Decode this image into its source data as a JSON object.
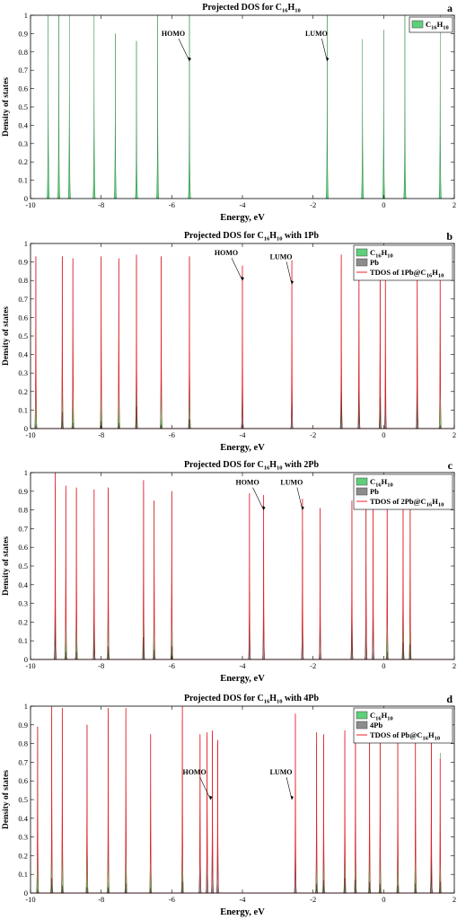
{
  "chart_data": [
    {
      "panel_label": "a",
      "type": "area",
      "title": "Projected DOS for C16H10",
      "title_parts": {
        "prefix": "Projected DOS for C",
        "sub1": "16",
        "mid": "H",
        "sub2": "10",
        "suffix": ""
      },
      "xlabel": "Energy, eV",
      "ylabel": "Density of states",
      "xlim": [
        -10,
        2
      ],
      "ylim": [
        0,
        1
      ],
      "xticks": [
        "-10",
        "-8",
        "-6",
        "-4",
        "-2",
        "0",
        "2"
      ],
      "yticks": [
        "0",
        "0.1",
        "0.2",
        "0.3",
        "0.4",
        "0.5",
        "0.6",
        "0.7",
        "0.8",
        "0.9",
        "1"
      ],
      "legend_position": "top-right",
      "legend": [
        {
          "label_parts": {
            "prefix": "C",
            "sub1": "16",
            "mid": "H",
            "sub2": "10",
            "suffix": ""
          },
          "kind": "patch",
          "color": "#5fcf7a"
        }
      ],
      "annotations": [
        {
          "text": "HOMO",
          "x": -5.5,
          "y": 0.75
        },
        {
          "text": "LUMO",
          "x": -1.6,
          "y": 0.75
        }
      ],
      "series": [
        {
          "kind": "fill",
          "color": "#5fcf7a",
          "peaks": [
            [
              -9.5,
              1.0
            ],
            [
              -9.2,
              1.0
            ],
            [
              -8.9,
              1.0
            ],
            [
              -8.2,
              1.0
            ],
            [
              -7.6,
              0.9
            ],
            [
              -7.0,
              0.86
            ],
            [
              -6.4,
              1.0
            ],
            [
              -5.5,
              1.0
            ],
            [
              -1.6,
              1.0
            ],
            [
              -0.6,
              0.87
            ],
            [
              0,
              0.92
            ],
            [
              0.6,
              1.0
            ],
            [
              1.6,
              1.0
            ]
          ]
        }
      ]
    },
    {
      "panel_label": "b",
      "type": "area",
      "title": "Projected DOS for C16H10 with 1Pb",
      "title_parts": {
        "prefix": "Projected DOS for C",
        "sub1": "16",
        "mid": "H",
        "sub2": "10",
        "suffix": " with 1Pb"
      },
      "xlabel": "Energy, eV",
      "ylabel": "Density of states",
      "xlim": [
        -10,
        2
      ],
      "ylim": [
        0,
        1
      ],
      "xticks": [
        "-10",
        "-8",
        "-6",
        "-4",
        "-2",
        "0",
        "2"
      ],
      "yticks": [
        "0",
        "0.1",
        "0.2",
        "0.3",
        "0.4",
        "0.5",
        "0.6",
        "0.7",
        "0.8",
        "0.9",
        "1"
      ],
      "legend_position": "top-right",
      "legend": [
        {
          "label_parts": {
            "prefix": "C",
            "sub1": "16",
            "mid": "H",
            "sub2": "10",
            "suffix": ""
          },
          "kind": "patch",
          "color": "#5fcf7a"
        },
        {
          "label_parts": {
            "prefix": "Pb",
            "sub1": "",
            "mid": "",
            "sub2": "",
            "suffix": ""
          },
          "kind": "patch",
          "color": "#8c8c8c"
        },
        {
          "label_parts": {
            "prefix": "TDOS of 1Pb@C",
            "sub1": "16",
            "mid": "H",
            "sub2": "10",
            "suffix": ""
          },
          "kind": "line",
          "color": "#e8202a"
        }
      ],
      "annotations": [
        {
          "text": "HOMO",
          "x": -4.0,
          "y": 0.8
        },
        {
          "text": "LUMO",
          "x": -2.6,
          "y": 0.78
        }
      ],
      "series": [
        {
          "kind": "fill",
          "color": "#5fcf7a",
          "peaks": [
            [
              -9.85,
              0.93
            ],
            [
              -9.1,
              0.93
            ],
            [
              -8.8,
              0.9
            ],
            [
              -8.0,
              0.93
            ],
            [
              -7.5,
              0.9
            ],
            [
              -7.0,
              0.92
            ],
            [
              -6.3,
              0.93
            ],
            [
              -5.5,
              0.93
            ],
            [
              -1.2,
              0.87
            ],
            [
              -0.7,
              0.88
            ],
            [
              -0.1,
              0.93
            ],
            [
              0.95,
              0.9
            ],
            [
              1.6,
              0.93
            ]
          ]
        },
        {
          "kind": "fill",
          "color": "#8c8c8c",
          "peaks": [
            [
              -9.85,
              0.02
            ],
            [
              -9.1,
              0.09
            ],
            [
              -8.8,
              0.03
            ],
            [
              -8.0,
              0.04
            ],
            [
              -7.5,
              0.03
            ],
            [
              -7.0,
              0.12
            ],
            [
              -6.3,
              0.02
            ],
            [
              -5.5,
              0.05
            ],
            [
              -4.0,
              0.48
            ],
            [
              -2.6,
              0.32
            ],
            [
              -1.2,
              0.2
            ],
            [
              -0.7,
              0.26
            ],
            [
              -0.1,
              0.17
            ],
            [
              0.05,
              0.4
            ],
            [
              0.95,
              0.23
            ],
            [
              1.6,
              0.02
            ]
          ]
        },
        {
          "kind": "line",
          "color": "#e8202a",
          "peaks": [
            [
              -9.85,
              0.93
            ],
            [
              -9.1,
              0.93
            ],
            [
              -8.8,
              0.92
            ],
            [
              -8.0,
              0.93
            ],
            [
              -7.5,
              0.92
            ],
            [
              -7.0,
              0.94
            ],
            [
              -6.3,
              0.93
            ],
            [
              -5.5,
              0.93
            ],
            [
              -4.0,
              0.88
            ],
            [
              -2.6,
              0.91
            ],
            [
              -1.2,
              0.94
            ],
            [
              -0.7,
              0.94
            ],
            [
              -0.1,
              0.94
            ],
            [
              0.05,
              0.93
            ],
            [
              0.95,
              0.93
            ],
            [
              1.6,
              0.93
            ]
          ]
        }
      ]
    },
    {
      "panel_label": "c",
      "type": "area",
      "title": "Projected DOS for C16H10 with 2Pb",
      "title_parts": {
        "prefix": "Projected DOS for C",
        "sub1": "16",
        "mid": "H",
        "sub2": "10",
        "suffix": " with 2Pb"
      },
      "xlabel": "Energy, eV",
      "ylabel": "Density of states",
      "xlim": [
        -10,
        2
      ],
      "ylim": [
        0,
        1
      ],
      "xticks": [
        "-10",
        "-8",
        "-6",
        "-4",
        "-2",
        "0",
        "2"
      ],
      "yticks": [
        "0",
        "0.1",
        "0.2",
        "0.3",
        "0.4",
        "0.5",
        "0.6",
        "0.7",
        "0.8",
        "0.9",
        "1"
      ],
      "legend_position": "top-right",
      "legend": [
        {
          "label_parts": {
            "prefix": "C",
            "sub1": "16",
            "mid": "H",
            "sub2": "10",
            "suffix": ""
          },
          "kind": "patch",
          "color": "#5fcf7a"
        },
        {
          "label_parts": {
            "prefix": "Pb",
            "sub1": "",
            "mid": "",
            "sub2": "",
            "suffix": ""
          },
          "kind": "patch",
          "color": "#8c8c8c"
        },
        {
          "label_parts": {
            "prefix": "TDOS of 2Pb@C",
            "sub1": "16",
            "mid": "H",
            "sub2": "10",
            "suffix": ""
          },
          "kind": "line",
          "color": "#e8202a"
        }
      ],
      "annotations": [
        {
          "text": "HOMO",
          "x": -3.4,
          "y": 0.8
        },
        {
          "text": "LUMO",
          "x": -2.3,
          "y": 0.8
        }
      ],
      "series": [
        {
          "kind": "fill",
          "color": "#5fcf7a",
          "peaks": [
            [
              -9.3,
              0.93
            ],
            [
              -9.0,
              0.9
            ],
            [
              -8.7,
              0.9
            ],
            [
              -8.2,
              0.7
            ],
            [
              -7.8,
              0.9
            ],
            [
              -6.8,
              0.9
            ],
            [
              -6.5,
              0.85
            ],
            [
              -6.0,
              0.9
            ],
            [
              -0.9,
              0.8
            ],
            [
              -0.5,
              0.8
            ],
            [
              0.1,
              0.9
            ],
            [
              0.55,
              0.8
            ],
            [
              0.75,
              0.8
            ]
          ]
        },
        {
          "kind": "fill",
          "color": "#8c8c8c",
          "peaks": [
            [
              -9.3,
              0.27
            ],
            [
              -9.0,
              0.04
            ],
            [
              -8.7,
              0.04
            ],
            [
              -8.2,
              0.22
            ],
            [
              -7.8,
              0.07
            ],
            [
              -6.8,
              0.12
            ],
            [
              -6.5,
              0.05
            ],
            [
              -6.0,
              0.07
            ],
            [
              -3.8,
              0.36
            ],
            [
              -3.4,
              0.63
            ],
            [
              -2.3,
              0.69
            ],
            [
              -1.8,
              0.6
            ],
            [
              -0.9,
              0.2
            ],
            [
              -0.5,
              0.5
            ],
            [
              -0.3,
              0.63
            ],
            [
              0.1,
              0.04
            ],
            [
              0.55,
              0.09
            ],
            [
              0.75,
              0.08
            ]
          ]
        },
        {
          "kind": "line",
          "color": "#e8202a",
          "peaks": [
            [
              -9.3,
              1.0
            ],
            [
              -9.0,
              0.93
            ],
            [
              -8.7,
              0.92
            ],
            [
              -8.2,
              0.91
            ],
            [
              -7.8,
              0.92
            ],
            [
              -6.8,
              0.96
            ],
            [
              -6.5,
              0.85
            ],
            [
              -6.0,
              0.9
            ],
            [
              -3.8,
              0.89
            ],
            [
              -3.4,
              0.88
            ],
            [
              -2.3,
              0.86
            ],
            [
              -1.8,
              0.81
            ],
            [
              -0.9,
              0.85
            ],
            [
              -0.5,
              0.86
            ],
            [
              -0.3,
              0.92
            ],
            [
              0.1,
              0.92
            ],
            [
              0.55,
              0.9
            ],
            [
              0.75,
              0.87
            ]
          ]
        }
      ]
    },
    {
      "panel_label": "d",
      "type": "area",
      "title": "Projected DOS for C16H10 with 4Pb",
      "title_parts": {
        "prefix": "Projected DOS for C",
        "sub1": "16",
        "mid": "H",
        "sub2": "10",
        "suffix": " with 4Pb"
      },
      "xlabel": "Energy, eV",
      "ylabel": "Density of states",
      "xlim": [
        -10,
        2
      ],
      "ylim": [
        0,
        1
      ],
      "xticks": [
        "-10",
        "-8",
        "-6",
        "-4",
        "-2",
        "0",
        "2"
      ],
      "yticks": [
        "0",
        "0.1",
        "0.2",
        "0.3",
        "0.4",
        "0.5",
        "0.6",
        "0.7",
        "0.8",
        "0.9",
        "1"
      ],
      "legend_position": "top-right",
      "legend": [
        {
          "label_parts": {
            "prefix": "C",
            "sub1": "16",
            "mid": "H",
            "sub2": "10",
            "suffix": ""
          },
          "kind": "patch",
          "color": "#5fcf7a"
        },
        {
          "label_parts": {
            "prefix": "4Pb",
            "sub1": "",
            "mid": "",
            "sub2": "",
            "suffix": ""
          },
          "kind": "patch",
          "color": "#8c8c8c"
        },
        {
          "label_parts": {
            "prefix": "TDOS of Pb@C",
            "sub1": "16",
            "mid": "H",
            "sub2": "10",
            "suffix": ""
          },
          "kind": "line",
          "color": "#e8202a"
        }
      ],
      "annotations": [
        {
          "text": "HOMO",
          "x": -4.9,
          "y": 0.5
        },
        {
          "text": "LUMO",
          "x": -2.6,
          "y": 0.5
        }
      ],
      "series": [
        {
          "kind": "fill",
          "color": "#5fcf7a",
          "peaks": [
            [
              -9.8,
              0.89
            ],
            [
              -9.4,
              0.95
            ],
            [
              -9.1,
              0.93
            ],
            [
              -8.4,
              0.9
            ],
            [
              -7.8,
              0.93
            ],
            [
              -7.3,
              0.93
            ],
            [
              -6.6,
              0.85
            ],
            [
              -5.7,
              0.93
            ],
            [
              -1.9,
              0.8
            ],
            [
              -1.7,
              0.8
            ],
            [
              -1.1,
              0.83
            ],
            [
              -0.8,
              0.85
            ],
            [
              -0.4,
              0.85
            ],
            [
              -0.1,
              0.8
            ],
            [
              0.4,
              0.8
            ],
            [
              0.9,
              0.85
            ],
            [
              1.35,
              0.8
            ],
            [
              1.6,
              0.75
            ]
          ]
        },
        {
          "kind": "fill",
          "color": "#8c8c8c",
          "peaks": [
            [
              -9.8,
              0.02
            ],
            [
              -9.4,
              0.08
            ],
            [
              -9.1,
              0.04
            ],
            [
              -8.4,
              0.03
            ],
            [
              -7.8,
              0.03
            ],
            [
              -7.3,
              0.05
            ],
            [
              -6.6,
              0.03
            ],
            [
              -5.7,
              0.06
            ],
            [
              -5.2,
              0.82
            ],
            [
              -5.0,
              0.84
            ],
            [
              -4.85,
              0.85
            ],
            [
              -4.7,
              0.8
            ],
            [
              -2.5,
              0.5
            ],
            [
              -1.9,
              0.05
            ],
            [
              -1.7,
              0.07
            ],
            [
              -1.1,
              0.08
            ],
            [
              -0.8,
              0.07
            ],
            [
              -0.4,
              0.06
            ],
            [
              -0.1,
              0.05
            ],
            [
              0.4,
              0.04
            ],
            [
              0.9,
              0.05
            ],
            [
              1.35,
              0.19
            ],
            [
              1.6,
              0.06
            ]
          ]
        },
        {
          "kind": "line",
          "color": "#e8202a",
          "peaks": [
            [
              -9.8,
              0.89
            ],
            [
              -9.4,
              1.0
            ],
            [
              -9.1,
              0.99
            ],
            [
              -8.4,
              0.9
            ],
            [
              -7.8,
              0.99
            ],
            [
              -7.3,
              0.99
            ],
            [
              -6.6,
              0.85
            ],
            [
              -5.7,
              1.0
            ],
            [
              -5.2,
              0.85
            ],
            [
              -5.0,
              0.86
            ],
            [
              -4.85,
              0.87
            ],
            [
              -4.7,
              0.82
            ],
            [
              -2.5,
              0.96
            ],
            [
              -1.9,
              0.86
            ],
            [
              -1.7,
              0.85
            ],
            [
              -1.1,
              0.87
            ],
            [
              -0.8,
              0.87
            ],
            [
              -0.4,
              0.86
            ],
            [
              -0.1,
              0.86
            ],
            [
              0.4,
              0.86
            ],
            [
              0.9,
              0.88
            ],
            [
              1.35,
              0.88
            ],
            [
              1.6,
              0.72
            ]
          ]
        }
      ]
    }
  ]
}
